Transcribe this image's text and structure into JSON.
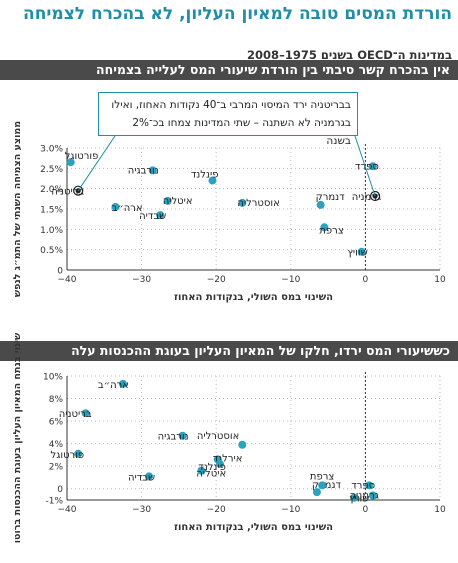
{
  "title": "הורדת המסים טובה למאיון העליון, לא בהכרח לצמיחה",
  "subtitle": "במדינות ה־OECD בשנים 1975–2008",
  "colors": {
    "accent": "#1f8ea8",
    "dot": "#2aa2c0",
    "bar": "#4a4a4a"
  },
  "chart_data": [
    {
      "type": "scatter",
      "title": "אין בהכרח קשר סיבתי בין הורדת שיעורי המס לעלייה בצמיחה",
      "xlabel": "השינוי במס השולי, בנקודות האחוז",
      "ylabel": "ממוצע הצמיחה השנתי של התמ״ג לנפש",
      "xlim": [
        -40,
        10
      ],
      "ylim": [
        0,
        3
      ],
      "xticks": [
        -40,
        -30,
        -20,
        -10,
        0,
        10
      ],
      "yticks": [
        "3.0%",
        "2.5%",
        "2.0%",
        "1.5%",
        "1.0%",
        "0.5%",
        "0"
      ],
      "callout": "בבריטניה ירד המיסוי המרבי ב־40 נקודות האחוז, ואילו בגרמניה לא השתנה – שתי המדינות צמחו בכ־2% בשנה",
      "points": [
        {
          "label": "פורטוגל",
          "x": -39.5,
          "y": 2.65
        },
        {
          "label": "בריטניה",
          "x": -38.5,
          "y": 1.95,
          "highlight": true
        },
        {
          "label": "ארה״ב",
          "x": -33.5,
          "y": 1.55
        },
        {
          "label": "נורבגיה",
          "x": -28.5,
          "y": 2.45
        },
        {
          "label": "איטליה",
          "x": -26.5,
          "y": 1.7
        },
        {
          "label": "שבדיה",
          "x": -27.5,
          "y": 1.35
        },
        {
          "label": "פינלנד",
          "x": -20.5,
          "y": 2.2
        },
        {
          "label": "אוסטרליה",
          "x": -16.5,
          "y": 1.65
        },
        {
          "label": "דנמרק",
          "x": -6,
          "y": 1.6
        },
        {
          "label": "צרפת",
          "x": -5.5,
          "y": 1.05
        },
        {
          "label": "שוויץ",
          "x": -0.5,
          "y": 0.45
        },
        {
          "label": "ספרד",
          "x": 1,
          "y": 2.55
        },
        {
          "label": "גרמניה",
          "x": 1.3,
          "y": 1.82,
          "highlight": true
        }
      ]
    },
    {
      "type": "scatter",
      "title": "כששיעורי המס ירדו, חלקו של המאיון העליון בעוגת ההכנסות עלה",
      "xlabel": "השינוי במס השולי, בנקודות האחוז",
      "ylabel": "שינוי בנתח המאיון העליון בעוגת ההכנסות ברוטו",
      "xlim": [
        -40,
        10
      ],
      "ylim": [
        -1,
        10
      ],
      "xticks": [
        -40,
        -30,
        -20,
        -10,
        0,
        10
      ],
      "yticks": [
        "10%",
        "8%",
        "6%",
        "4%",
        "2%",
        "0",
        "-1%"
      ],
      "points": [
        {
          "label": "ארה״ב",
          "x": -32.5,
          "y": 9.3
        },
        {
          "label": "בריטניה",
          "x": -37.5,
          "y": 6.7
        },
        {
          "label": "פורטוגל",
          "x": -38.5,
          "y": 3.1
        },
        {
          "label": "נורבגיה",
          "x": -24.5,
          "y": 4.7
        },
        {
          "label": "שבדיה",
          "x": -29,
          "y": 1.1
        },
        {
          "label": "איטליה",
          "x": -22,
          "y": 1.6
        },
        {
          "label": "אירלנד",
          "x": -19.8,
          "y": 2.6
        },
        {
          "label": "פינלנד",
          "x": -19.5,
          "y": 2.2
        },
        {
          "label": "אוסטרליה",
          "x": -16.5,
          "y": 3.9
        },
        {
          "label": "דנמרק",
          "x": -6.5,
          "y": -0.3
        },
        {
          "label": "צרפת",
          "x": -5.8,
          "y": 0.3
        },
        {
          "label": "שוויץ",
          "x": -1.5,
          "y": -0.8
        },
        {
          "label": "ספרד",
          "x": 0.5,
          "y": 0.3
        },
        {
          "label": "גרמניה",
          "x": 1,
          "y": -0.6
        }
      ]
    }
  ]
}
